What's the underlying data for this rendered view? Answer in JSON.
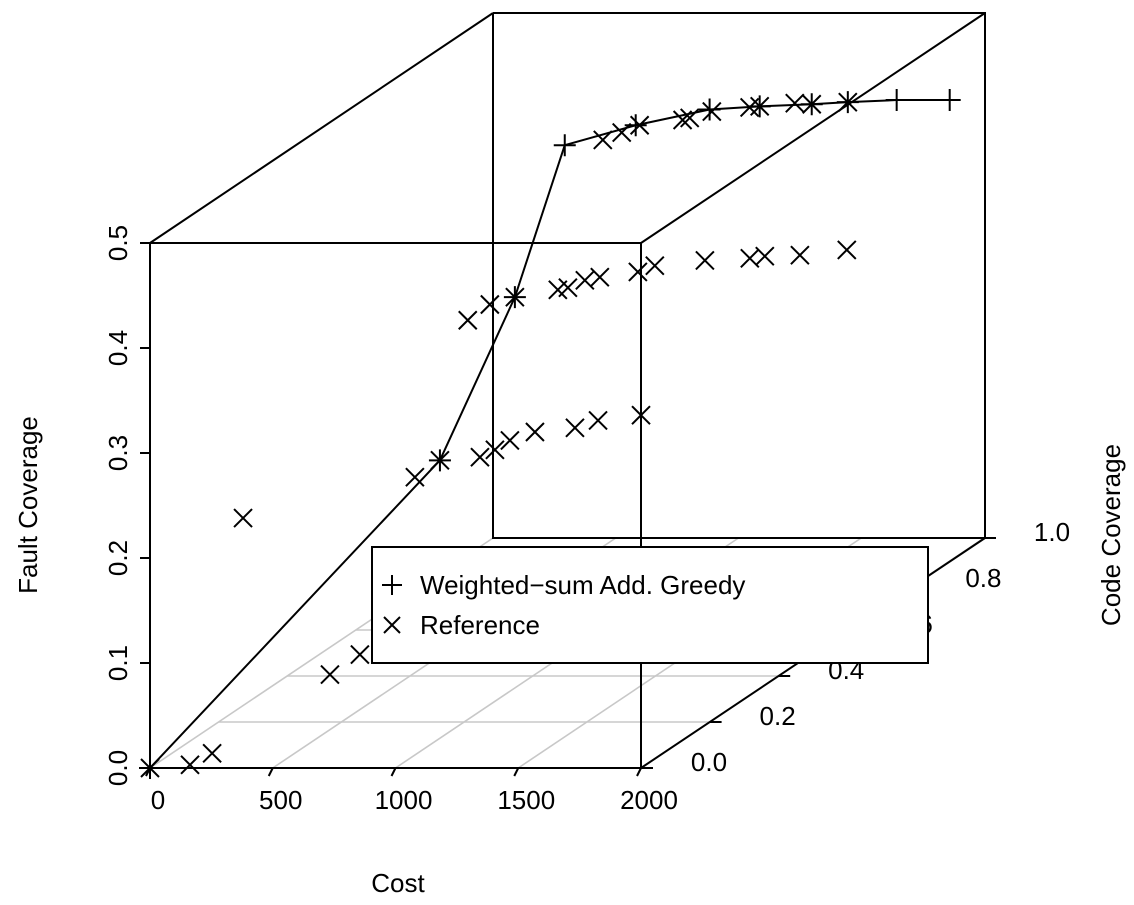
{
  "chart_data": {
    "type": "scatter3d",
    "xlabel": "Cost",
    "ylabel": "Code Coverage",
    "zlabel": "Fault Coverage",
    "xlim": [
      0,
      2000
    ],
    "xticks": [
      0,
      500,
      1000,
      1500,
      2000
    ],
    "ylim": [
      0,
      1
    ],
    "yticks": [
      {
        "value": 0,
        "label": "0.0"
      },
      0.2,
      0.4,
      0.6,
      0.8,
      {
        "value": 1,
        "label": "1.0"
      }
    ],
    "zlim": [
      0,
      0.5
    ],
    "zticks": [
      {
        "value": 0,
        "label": "0.0"
      },
      0.1,
      0.2,
      0.3,
      0.4,
      0.5
    ],
    "grid": true,
    "legend": "center",
    "series": [
      {
        "name": "Weighted−sum Add. Greedy",
        "color": "#000000",
        "marker": "+",
        "line": true,
        "x": [
          0,
          1181,
          648,
          432,
          721,
          1022,
          1226,
          1438,
          1585,
          1784,
          2000
        ],
        "y": [
          0,
          0,
          0.6,
          0.9,
          0.9,
          0.9,
          0.9,
          0.9,
          0.9,
          0.9,
          0.9
        ],
        "z": [
          0,
          0.293,
          0.317,
          0.396,
          0.415,
          0.43,
          0.433,
          0.435,
          0.437,
          0.439,
          0.439
        ]
      },
      {
        "name": "Reference",
        "color": "#000000",
        "marker": "x",
        "line": false,
        "x": [
          0,
          163,
          253,
          733,
          855,
          379,
          1079,
          1181,
          1344,
          1405,
          1466,
          1568,
          1731,
          1825,
          2000,
          456,
          546,
          648,
          823,
          864,
          933,
          994,
          1149,
          1218,
          1422,
          1605,
          1666,
          1809,
          2000,
          587,
          664,
          737,
          912,
          941,
          1031,
          1185,
          1226,
          1369,
          1438,
          1585
        ],
        "y": [
          0,
          0,
          0,
          0,
          0,
          0,
          0,
          0,
          0,
          0,
          0,
          0,
          0,
          0,
          0,
          0.6,
          0.6,
          0.6,
          0.6,
          0.6,
          0.6,
          0.6,
          0.6,
          0.6,
          0.6,
          0.6,
          0.6,
          0.6,
          0.6,
          0.9,
          0.9,
          0.9,
          0.9,
          0.9,
          0.9,
          0.9,
          0.9,
          0.9,
          0.9,
          0.9
        ],
        "z": [
          0,
          0.003,
          0.014,
          0.089,
          0.108,
          0.238,
          0.277,
          0.293,
          0.296,
          0.303,
          0.312,
          0.32,
          0.324,
          0.331,
          0.336,
          0.295,
          0.31,
          0.317,
          0.324,
          0.326,
          0.333,
          0.336,
          0.341,
          0.347,
          0.352,
          0.354,
          0.356,
          0.357,
          0.362,
          0.401,
          0.408,
          0.415,
          0.42,
          0.422,
          0.428,
          0.432,
          0.433,
          0.436,
          0.435,
          0.437
        ]
      }
    ]
  }
}
